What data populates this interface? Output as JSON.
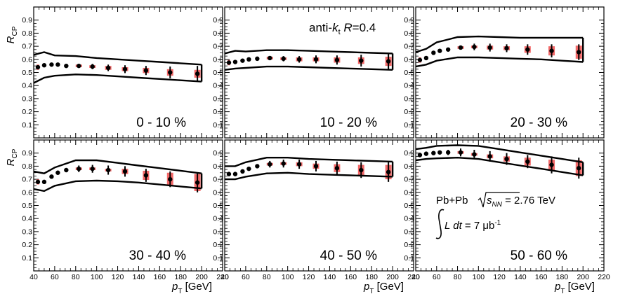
{
  "figure": {
    "ylabel_main": "R",
    "ylabel_sub": "CP",
    "xlabel_main": "p",
    "xlabel_sub": "T",
    "xlabel_unit": " [GeV]",
    "jet_label_prefix": "anti-",
    "jet_label_k": "k",
    "jet_label_t": "t",
    "jet_label_R": " R",
    "jet_label_value": "=0.4",
    "collision_prefix": "Pb+Pb ",
    "sqrt_s": "s",
    "sqrt_sub": "NN",
    "energy": " = 2.76 TeV",
    "lumi_L": "L dt",
    "lumi_value": " = 7 μb",
    "lumi_exp": "-1"
  },
  "chart_data": [
    {
      "type": "scatter",
      "title": "0 - 10 %",
      "xlim": [
        40,
        220
      ],
      "ylim": [
        0,
        1
      ],
      "xticks": [
        40,
        60,
        80,
        100,
        120,
        140,
        160,
        180,
        200,
        220
      ],
      "yticks": [
        0.1,
        0.2,
        0.3,
        0.4,
        0.5,
        0.6,
        0.7,
        0.8,
        0.9
      ],
      "x": [
        44,
        50,
        57,
        63,
        71,
        83,
        96,
        111,
        127,
        147,
        170,
        196
      ],
      "y": [
        0.54,
        0.555,
        0.56,
        0.56,
        0.55,
        0.55,
        0.545,
        0.535,
        0.525,
        0.515,
        0.5,
        0.49
      ],
      "stat_err": [
        0,
        0,
        0,
        0,
        0.01,
        0.015,
        0.02,
        0.025,
        0.03,
        0.035,
        0.045,
        0.06
      ],
      "sys_err": [
        0.02,
        0,
        0,
        0,
        0,
        0.01,
        0.01,
        0.015,
        0.015,
        0.02,
        0.025,
        0.03
      ],
      "band_x": [
        40,
        50,
        60,
        80,
        100,
        120,
        140,
        160,
        180,
        200
      ],
      "band_upper": [
        0.635,
        0.655,
        0.63,
        0.625,
        0.61,
        0.6,
        0.59,
        0.58,
        0.57,
        0.56
      ],
      "band_lower": [
        0.42,
        0.46,
        0.475,
        0.485,
        0.48,
        0.47,
        0.46,
        0.45,
        0.44,
        0.43
      ]
    },
    {
      "type": "scatter",
      "title": "10 - 20 %",
      "xlim": [
        40,
        220
      ],
      "ylim": [
        0,
        1
      ],
      "xticks": [
        40,
        60,
        80,
        100,
        120,
        140,
        160,
        180,
        200,
        220
      ],
      "yticks": [
        0.1,
        0.2,
        0.3,
        0.4,
        0.5,
        0.6,
        0.7,
        0.8,
        0.9
      ],
      "x": [
        44,
        50,
        57,
        63,
        71,
        83,
        96,
        111,
        127,
        147,
        170,
        196
      ],
      "y": [
        0.575,
        0.58,
        0.59,
        0.6,
        0.605,
        0.61,
        0.605,
        0.6,
        0.6,
        0.595,
        0.59,
        0.585
      ],
      "stat_err": [
        0,
        0,
        0,
        0,
        0.01,
        0.015,
        0.02,
        0.025,
        0.03,
        0.035,
        0.045,
        0.06
      ],
      "sys_err": [
        0.02,
        0,
        0,
        0,
        0,
        0.01,
        0.01,
        0.015,
        0.015,
        0.02,
        0.025,
        0.035
      ],
      "band_x": [
        40,
        50,
        60,
        80,
        100,
        120,
        140,
        160,
        180,
        200
      ],
      "band_upper": [
        0.645,
        0.665,
        0.66,
        0.67,
        0.67,
        0.665,
        0.66,
        0.655,
        0.65,
        0.645
      ],
      "band_lower": [
        0.52,
        0.53,
        0.535,
        0.545,
        0.545,
        0.54,
        0.535,
        0.53,
        0.525,
        0.52
      ]
    },
    {
      "type": "scatter",
      "title": "20 - 30 %",
      "xlim": [
        40,
        220
      ],
      "ylim": [
        0,
        1
      ],
      "xticks": [
        40,
        60,
        80,
        100,
        120,
        140,
        160,
        180,
        200,
        220
      ],
      "yticks": [
        0.1,
        0.2,
        0.3,
        0.4,
        0.5,
        0.6,
        0.7,
        0.8,
        0.9
      ],
      "x": [
        44,
        50,
        57,
        63,
        71,
        83,
        96,
        111,
        127,
        147,
        170,
        196
      ],
      "y": [
        0.595,
        0.61,
        0.65,
        0.665,
        0.675,
        0.69,
        0.695,
        0.69,
        0.685,
        0.675,
        0.665,
        0.655
      ],
      "stat_err": [
        0,
        0,
        0,
        0,
        0.01,
        0.015,
        0.025,
        0.03,
        0.03,
        0.04,
        0.05,
        0.06
      ],
      "sys_err": [
        0.02,
        0,
        0,
        0,
        0,
        0.01,
        0.01,
        0.015,
        0.015,
        0.025,
        0.035,
        0.05
      ],
      "band_x": [
        40,
        50,
        60,
        80,
        100,
        120,
        140,
        160,
        180,
        200
      ],
      "band_upper": [
        0.655,
        0.68,
        0.73,
        0.77,
        0.775,
        0.77,
        0.765,
        0.765,
        0.765,
        0.765
      ],
      "band_lower": [
        0.545,
        0.56,
        0.59,
        0.615,
        0.615,
        0.61,
        0.605,
        0.6,
        0.59,
        0.58
      ]
    },
    {
      "type": "scatter",
      "title": "30 - 40 %",
      "xlim": [
        40,
        220
      ],
      "ylim": [
        0,
        1
      ],
      "xticks": [
        40,
        60,
        80,
        100,
        120,
        140,
        160,
        180,
        200,
        220
      ],
      "yticks": [
        0.1,
        0.2,
        0.3,
        0.4,
        0.5,
        0.6,
        0.7,
        0.8,
        0.9
      ],
      "x": [
        44,
        50,
        57,
        63,
        71,
        83,
        96,
        111,
        127,
        147,
        170,
        196
      ],
      "y": [
        0.68,
        0.68,
        0.72,
        0.75,
        0.77,
        0.78,
        0.78,
        0.77,
        0.76,
        0.73,
        0.7,
        0.675
      ],
      "stat_err": [
        0,
        0,
        0,
        0,
        0.015,
        0.025,
        0.03,
        0.035,
        0.04,
        0.05,
        0.06,
        0.075
      ],
      "sys_err": [
        0.02,
        0,
        0,
        0,
        0,
        0.01,
        0.01,
        0.01,
        0.02,
        0.035,
        0.05,
        0.065
      ],
      "band_x": [
        40,
        50,
        60,
        80,
        100,
        120,
        140,
        160,
        180,
        200
      ],
      "band_upper": [
        0.76,
        0.745,
        0.79,
        0.845,
        0.845,
        0.825,
        0.805,
        0.785,
        0.765,
        0.745
      ],
      "band_lower": [
        0.625,
        0.61,
        0.65,
        0.685,
        0.69,
        0.685,
        0.675,
        0.66,
        0.645,
        0.63
      ]
    },
    {
      "type": "scatter",
      "title": "40 - 50 %",
      "xlim": [
        40,
        220
      ],
      "ylim": [
        0,
        1
      ],
      "xticks": [
        40,
        60,
        80,
        100,
        120,
        140,
        160,
        180,
        200,
        220
      ],
      "yticks": [
        0.1,
        0.2,
        0.3,
        0.4,
        0.5,
        0.6,
        0.7,
        0.8,
        0.9
      ],
      "x": [
        44,
        50,
        57,
        63,
        71,
        83,
        96,
        111,
        127,
        147,
        170,
        196
      ],
      "y": [
        0.74,
        0.74,
        0.76,
        0.78,
        0.8,
        0.815,
        0.82,
        0.815,
        0.8,
        0.785,
        0.77,
        0.755
      ],
      "stat_err": [
        0,
        0,
        0,
        0,
        0.015,
        0.025,
        0.03,
        0.035,
        0.04,
        0.05,
        0.06,
        0.075
      ],
      "sys_err": [
        0.015,
        0,
        0,
        0,
        0,
        0.01,
        0.01,
        0.015,
        0.02,
        0.03,
        0.04,
        0.055
      ],
      "band_x": [
        40,
        50,
        60,
        80,
        100,
        120,
        140,
        160,
        180,
        200
      ],
      "band_upper": [
        0.8,
        0.8,
        0.83,
        0.865,
        0.865,
        0.855,
        0.85,
        0.845,
        0.84,
        0.835
      ],
      "band_lower": [
        0.7,
        0.7,
        0.72,
        0.745,
        0.75,
        0.74,
        0.735,
        0.73,
        0.725,
        0.72
      ]
    },
    {
      "type": "scatter",
      "title": "50 - 60 %",
      "xlim": [
        40,
        220
      ],
      "ylim": [
        0,
        1
      ],
      "xticks": [
        40,
        60,
        80,
        100,
        120,
        140,
        160,
        180,
        200,
        220
      ],
      "yticks": [
        0.1,
        0.2,
        0.3,
        0.4,
        0.5,
        0.6,
        0.7,
        0.8,
        0.9
      ],
      "x": [
        44,
        50,
        57,
        63,
        71,
        83,
        96,
        111,
        127,
        147,
        170,
        196
      ],
      "y": [
        0.885,
        0.895,
        0.9,
        0.905,
        0.905,
        0.905,
        0.89,
        0.875,
        0.855,
        0.835,
        0.81,
        0.785
      ],
      "stat_err": [
        0,
        0,
        0,
        0,
        0.02,
        0.03,
        0.035,
        0.04,
        0.045,
        0.05,
        0.065,
        0.08
      ],
      "sys_err": [
        0.015,
        0,
        0,
        0,
        0,
        0.01,
        0.01,
        0.015,
        0.02,
        0.03,
        0.04,
        0.06
      ],
      "band_x": [
        40,
        50,
        60,
        80,
        100,
        120,
        140,
        160,
        180,
        200
      ],
      "band_upper": [
        0.93,
        0.94,
        0.955,
        0.96,
        0.955,
        0.93,
        0.905,
        0.88,
        0.855,
        0.83
      ],
      "band_lower": [
        0.845,
        0.855,
        0.86,
        0.865,
        0.855,
        0.83,
        0.805,
        0.78,
        0.755,
        0.73
      ]
    }
  ]
}
